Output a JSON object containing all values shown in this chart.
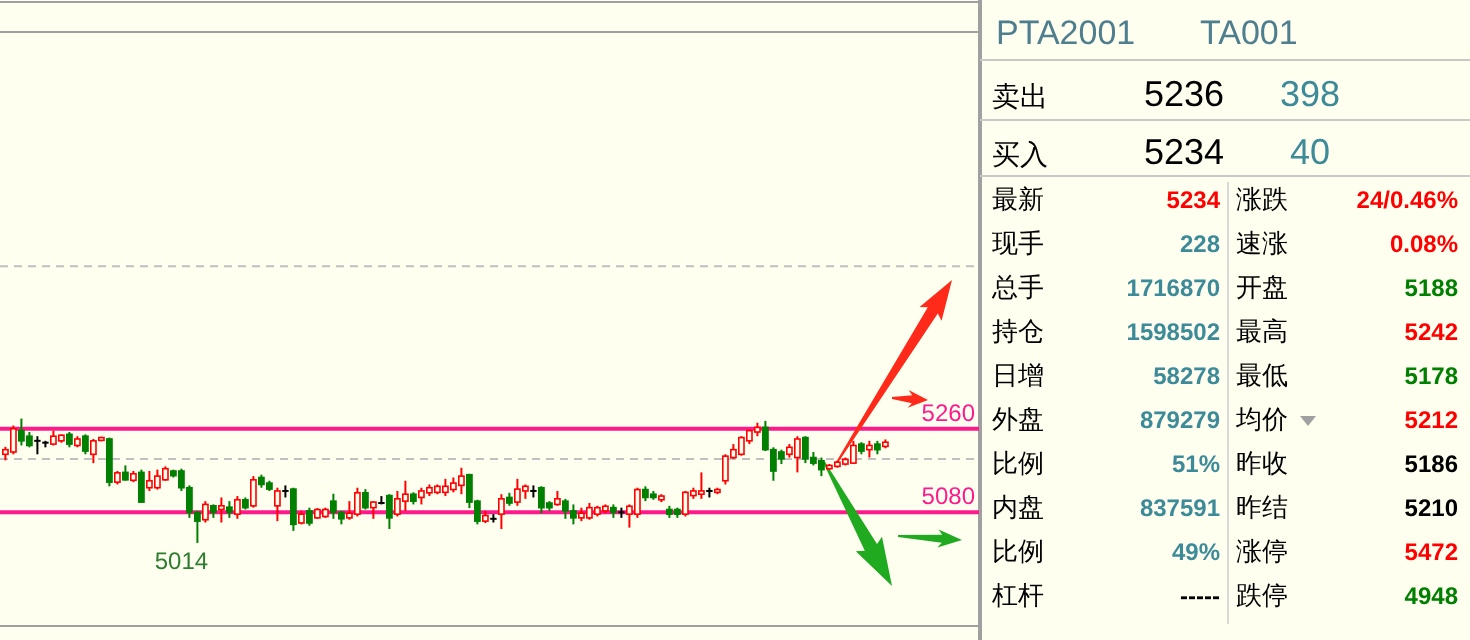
{
  "chart_data": [
    {
      "type": "candlestick",
      "categories": [
        null,
        null,
        null,
        null,
        null,
        null,
        null,
        null,
        null,
        null,
        null,
        null,
        null,
        null,
        null,
        null,
        null,
        null,
        null,
        null,
        null,
        null,
        null,
        null,
        null,
        null,
        null,
        null,
        null,
        null,
        null,
        null,
        null,
        null,
        null,
        null,
        null,
        null,
        null,
        null,
        null,
        null,
        null,
        null,
        null,
        null,
        null,
        null,
        null,
        null,
        null,
        null,
        null,
        null,
        null,
        null,
        null,
        null,
        null,
        null,
        null,
        null,
        null,
        null,
        null,
        null,
        null,
        null,
        null,
        null,
        null,
        null,
        null,
        null,
        null,
        null,
        null,
        null,
        null,
        null,
        null,
        null,
        null,
        null,
        null,
        null,
        null,
        null,
        null,
        null,
        null,
        null,
        null,
        null,
        null,
        null,
        null,
        null,
        null,
        null,
        null,
        null,
        null,
        null,
        null,
        null,
        null,
        null,
        null,
        null,
        null
      ],
      "ohlc": [
        [
          5205,
          5221,
          5192,
          5215
        ],
        [
          5210,
          5267,
          5205,
          5260
        ],
        [
          5256,
          5282,
          5224,
          5234
        ],
        [
          5244,
          5253,
          5220,
          5224
        ],
        [
          5234,
          5244,
          5205,
          5234
        ],
        [
          5230,
          5234,
          5220,
          5230
        ],
        [
          5227,
          5256,
          5224,
          5244
        ],
        [
          5234,
          5248,
          5230,
          5246
        ],
        [
          5248,
          5253,
          5220,
          5227
        ],
        [
          5224,
          5244,
          5220,
          5238
        ],
        [
          5244,
          5248,
          5205,
          5212
        ],
        [
          5205,
          5238,
          5186,
          5234
        ],
        [
          5235,
          5243,
          5233,
          5241
        ],
        [
          5238,
          5241,
          5136,
          5145
        ],
        [
          5145,
          5169,
          5140,
          5165
        ],
        [
          5166,
          5181,
          5148,
          5150
        ],
        [
          5149,
          5169,
          5145,
          5163
        ],
        [
          5166,
          5172,
          5100,
          5102
        ],
        [
          5133,
          5169,
          5126,
          5148
        ],
        [
          5133,
          5172,
          5129,
          5158
        ],
        [
          5150,
          5179,
          5148,
          5174
        ],
        [
          5169,
          5172,
          5155,
          5159
        ],
        [
          5169,
          5174,
          5126,
          5133
        ],
        [
          5133,
          5138,
          5068,
          5080
        ],
        [
          5080,
          5083,
          5014,
          5061
        ],
        [
          5064,
          5104,
          5058,
          5097
        ],
        [
          5094,
          5097,
          5068,
          5080
        ],
        [
          5086,
          5112,
          5058,
          5094
        ],
        [
          5091,
          5104,
          5068,
          5080
        ],
        [
          5076,
          5115,
          5066,
          5107
        ],
        [
          5107,
          5112,
          5086,
          5090
        ],
        [
          5094,
          5158,
          5090,
          5150
        ],
        [
          5155,
          5161,
          5133,
          5140
        ],
        [
          5143,
          5148,
          5126,
          5130
        ],
        [
          5094,
          5133,
          5061,
          5126
        ],
        [
          5126,
          5138,
          5112,
          5126
        ],
        [
          5130,
          5133,
          5040,
          5054
        ],
        [
          5057,
          5083,
          5054,
          5076
        ],
        [
          5083,
          5090,
          5051,
          5057
        ],
        [
          5068,
          5089,
          5066,
          5086
        ],
        [
          5071,
          5090,
          5068,
          5086
        ],
        [
          5104,
          5120,
          5066,
          5080
        ],
        [
          5080,
          5083,
          5054,
          5066
        ],
        [
          5068,
          5104,
          5064,
          5078
        ],
        [
          5076,
          5133,
          5071,
          5122
        ],
        [
          5122,
          5130,
          5086,
          5090
        ],
        [
          5090,
          5104,
          5066,
          5102
        ],
        [
          5100,
          5115,
          5097,
          5100
        ],
        [
          5116,
          5119,
          5044,
          5068
        ],
        [
          5076,
          5126,
          5071,
          5109
        ],
        [
          5104,
          5148,
          5083,
          5119
        ],
        [
          5119,
          5123,
          5097,
          5104
        ],
        [
          5112,
          5133,
          5097,
          5126
        ],
        [
          5122,
          5140,
          5115,
          5133
        ],
        [
          5123,
          5140,
          5119,
          5136
        ],
        [
          5123,
          5152,
          5115,
          5136
        ],
        [
          5129,
          5155,
          5123,
          5143
        ],
        [
          5138,
          5176,
          5119,
          5158
        ],
        [
          5161,
          5163,
          5089,
          5102
        ],
        [
          5104,
          5107,
          5054,
          5061
        ],
        [
          5061,
          5083,
          5057,
          5073
        ],
        [
          5066,
          5076,
          5058,
          5066
        ],
        [
          5076,
          5119,
          5044,
          5109
        ],
        [
          5112,
          5122,
          5094,
          5100
        ],
        [
          5102,
          5152,
          5094,
          5130
        ],
        [
          5126,
          5140,
          5109,
          5136
        ],
        [
          5126,
          5138,
          5112,
          5126
        ],
        [
          5133,
          5136,
          5078,
          5090
        ],
        [
          5100,
          5104,
          5083,
          5090
        ],
        [
          5097,
          5126,
          5094,
          5109
        ],
        [
          5104,
          5109,
          5066,
          5083
        ],
        [
          5083,
          5097,
          5054,
          5068
        ],
        [
          5068,
          5090,
          5061,
          5078
        ],
        [
          5068,
          5100,
          5064,
          5090
        ],
        [
          5076,
          5094,
          5071,
          5090
        ],
        [
          5083,
          5097,
          5078,
          5093
        ],
        [
          5090,
          5097,
          5068,
          5080
        ],
        [
          5080,
          5090,
          5068,
          5080
        ],
        [
          5076,
          5097,
          5047,
          5093
        ],
        [
          5076,
          5133,
          5068,
          5129
        ],
        [
          5129,
          5136,
          5104,
          5112
        ],
        [
          5119,
          5126,
          5107,
          5112
        ],
        [
          5107,
          5119,
          5102,
          5115
        ],
        [
          5086,
          5094,
          5068,
          5076
        ],
        [
          5086,
          5090,
          5068,
          5076
        ],
        [
          5076,
          5126,
          5071,
          5123
        ],
        [
          5116,
          5133,
          5109,
          5126
        ],
        [
          5119,
          5166,
          5109,
          5126
        ],
        [
          5126,
          5133,
          5112,
          5126
        ],
        [
          5123,
          5133,
          5119,
          5129
        ],
        [
          5148,
          5205,
          5140,
          5201
        ],
        [
          5198,
          5227,
          5195,
          5215
        ],
        [
          5205,
          5244,
          5202,
          5241
        ],
        [
          5234,
          5258,
          5227,
          5256
        ],
        [
          5253,
          5273,
          5244,
          5263
        ],
        [
          5263,
          5277,
          5212,
          5215
        ],
        [
          5215,
          5220,
          5148,
          5169
        ],
        [
          5210,
          5215,
          5184,
          5195
        ],
        [
          5205,
          5227,
          5198,
          5220
        ],
        [
          5198,
          5244,
          5166,
          5238
        ],
        [
          5241,
          5244,
          5186,
          5195
        ],
        [
          5198,
          5210,
          5181,
          5186
        ],
        [
          5191,
          5198,
          5158,
          5172
        ],
        [
          5174,
          5184,
          5172,
          5181
        ],
        [
          5179,
          5191,
          5176,
          5188
        ],
        [
          5184,
          5198,
          5181,
          5194
        ],
        [
          5186,
          5234,
          5184,
          5224
        ],
        [
          5227,
          5231,
          5205,
          5212
        ],
        [
          5215,
          5234,
          5198,
          5224
        ],
        [
          5227,
          5234,
          5205,
          5215
        ],
        [
          5222,
          5237,
          5218,
          5231
        ]
      ],
      "ylim": [
        4835,
        6115
      ],
      "ref_lines": [
        {
          "axis": "y",
          "value": 5260,
          "label": "5260",
          "color": "#ff1a8c"
        },
        {
          "axis": "y",
          "value": 5080,
          "label": "5080",
          "color": "#ff1a8c"
        },
        {
          "axis": "y",
          "value": 5195,
          "color": "#c0c0c0",
          "line_style": "dashed"
        },
        {
          "axis": "y",
          "value": 5610,
          "color": "#c0c0c0",
          "line_style": "dashed"
        }
      ],
      "annotations": [
        "5014"
      ]
    },
    {
      "type": "other",
      "title": "PTA2001",
      "subtitle": "TA001",
      "annotations": [
        "卖出",
        "5236",
        "398",
        "买入",
        "5234",
        "40",
        "最新",
        "5234",
        "涨跌",
        "24/0.46%",
        "现手",
        "228",
        "速涨",
        "0.08%",
        "总手",
        "1716870",
        "开盘",
        "5188",
        "持仓",
        "1598502",
        "最高",
        "5242",
        "日增",
        "58278",
        "最低",
        "5178",
        "外盘",
        "879279",
        "均价",
        "5212",
        "比例",
        "51%",
        "昨收",
        "5186",
        "内盘",
        "837591",
        "昨结",
        "5210",
        "比例",
        "49%",
        "涨停",
        "5472",
        "杠杆",
        "-----",
        "跌停",
        "4948"
      ]
    }
  ]
}
